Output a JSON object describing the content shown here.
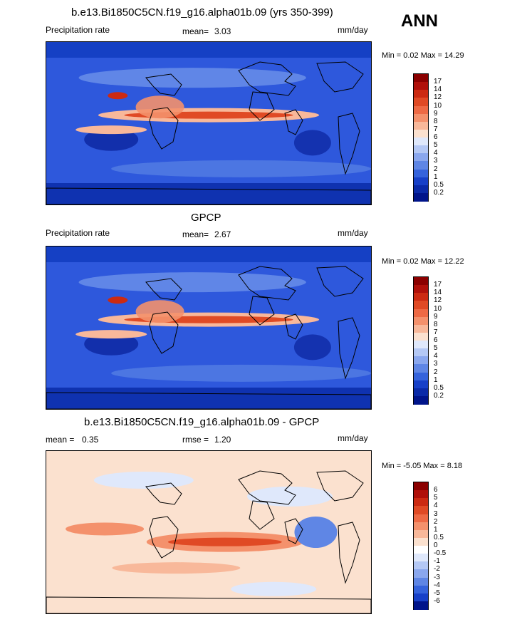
{
  "season": "ANN",
  "panels": [
    {
      "title": "b.e13.Bi1850C5CN.f19_g16.alpha01b.09 (yrs 350-399)",
      "left_label": "Precipitation rate",
      "mid_label": "mean=",
      "mid_value": "3.03",
      "units": "mm/day",
      "minmax_text": "Min =   0.02 Max =  14.29",
      "field": "precipitation",
      "colorbar": {
        "labels": [
          "17",
          "14",
          "12",
          "10",
          "9",
          "8",
          "7",
          "6",
          "5",
          "4",
          "3",
          "2",
          "1",
          "0.5",
          "0.2"
        ],
        "colors": [
          "#8b0000",
          "#b0100a",
          "#cc2a12",
          "#e04a25",
          "#ee6a45",
          "#f4916c",
          "#f8b89a",
          "#fbe1cf",
          "#dfe8fb",
          "#b4c8f5",
          "#8aa7ee",
          "#5f86e5",
          "#3563dc",
          "#1740c8",
          "#0a2aa8",
          "#00148a"
        ]
      }
    },
    {
      "title": "GPCP",
      "left_label": "Precipitation rate",
      "mid_label": "mean=",
      "mid_value": "2.67",
      "units": "mm/day",
      "minmax_text": "Min =   0.02 Max =  12.22",
      "field": "precipitation",
      "colorbar": {
        "labels": [
          "17",
          "14",
          "12",
          "10",
          "9",
          "8",
          "7",
          "6",
          "5",
          "4",
          "3",
          "2",
          "1",
          "0.5",
          "0.2"
        ],
        "colors": [
          "#8b0000",
          "#b0100a",
          "#cc2a12",
          "#e04a25",
          "#ee6a45",
          "#f4916c",
          "#f8b89a",
          "#fbe1cf",
          "#dfe8fb",
          "#b4c8f5",
          "#8aa7ee",
          "#5f86e5",
          "#3563dc",
          "#1740c8",
          "#0a2aa8",
          "#00148a"
        ]
      }
    },
    {
      "title": "b.e13.Bi1850C5CN.f19_g16.alpha01b.09 - GPCP",
      "left_label": "mean =",
      "left_value": "0.35",
      "mid_label": "rmse =",
      "mid_value": "1.20",
      "units": "mm/day",
      "minmax_text": "Min =  -5.05 Max =   8.18",
      "field": "difference",
      "colorbar": {
        "labels": [
          "6",
          "5",
          "4",
          "3",
          "2",
          "1",
          "0.5",
          "0",
          "-0.5",
          "-1",
          "-2",
          "-3",
          "-4",
          "-5",
          "-6"
        ],
        "colors": [
          "#8b0000",
          "#b0100a",
          "#cc2a12",
          "#e04a25",
          "#ee6a45",
          "#f4916c",
          "#f8b89a",
          "#fbe1cf",
          "#ffffff",
          "#dfe8fb",
          "#b4c8f5",
          "#8aa7ee",
          "#5f86e5",
          "#3563dc",
          "#1740c8",
          "#00148a"
        ]
      }
    }
  ]
}
